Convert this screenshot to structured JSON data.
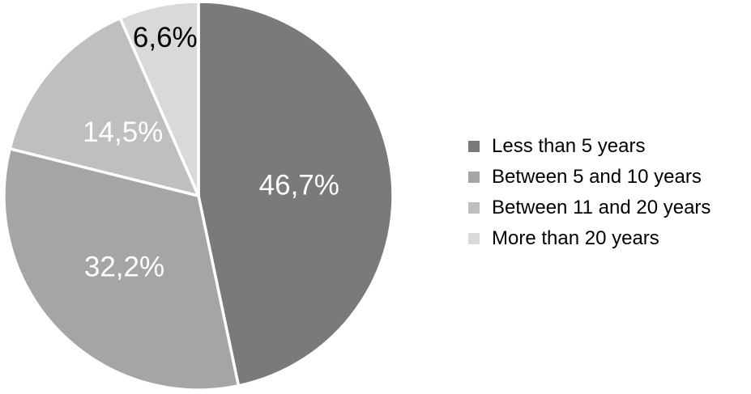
{
  "chart_data": {
    "type": "pie",
    "title": "",
    "start_angle_deg": 0,
    "direction": "clockwise",
    "legend_position": "right",
    "background_color": "#ffffff",
    "separator_color": "#ffffff",
    "slices": [
      {
        "label": "Less than 5 years",
        "value": 46.7,
        "display": "46,7%",
        "color": "#7a7a7a",
        "label_color": "#ffffff"
      },
      {
        "label": "Between 5 and 10 years",
        "value": 32.2,
        "display": "32,2%",
        "color": "#a5a5a5",
        "label_color": "#ffffff"
      },
      {
        "label": "Between 11 and 20 years",
        "value": 14.5,
        "display": "14,5%",
        "color": "#bfbfbf",
        "label_color": "#ffffff"
      },
      {
        "label": "More than 20 years",
        "value": 6.6,
        "display": "6,6%",
        "color": "#d9d9d9",
        "label_color": "#000000"
      }
    ]
  }
}
